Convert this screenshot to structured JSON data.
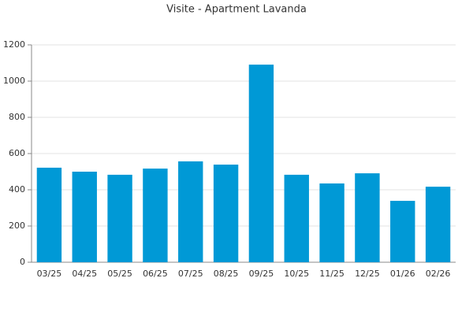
{
  "chart_data": {
    "type": "bar",
    "title": "Visite - Apartment Lavanda",
    "categories": [
      "03/25",
      "04/25",
      "05/25",
      "06/25",
      "07/25",
      "08/25",
      "09/25",
      "10/25",
      "11/25",
      "12/25",
      "01/26",
      "02/26"
    ],
    "values": [
      522,
      500,
      483,
      517,
      557,
      539,
      1091,
      483,
      435,
      491,
      339,
      417
    ],
    "color": "#0099d6",
    "ylim": [
      0,
      1200
    ],
    "yticks": [
      0,
      200,
      400,
      600,
      800,
      1000,
      1200
    ],
    "grid": true
  }
}
